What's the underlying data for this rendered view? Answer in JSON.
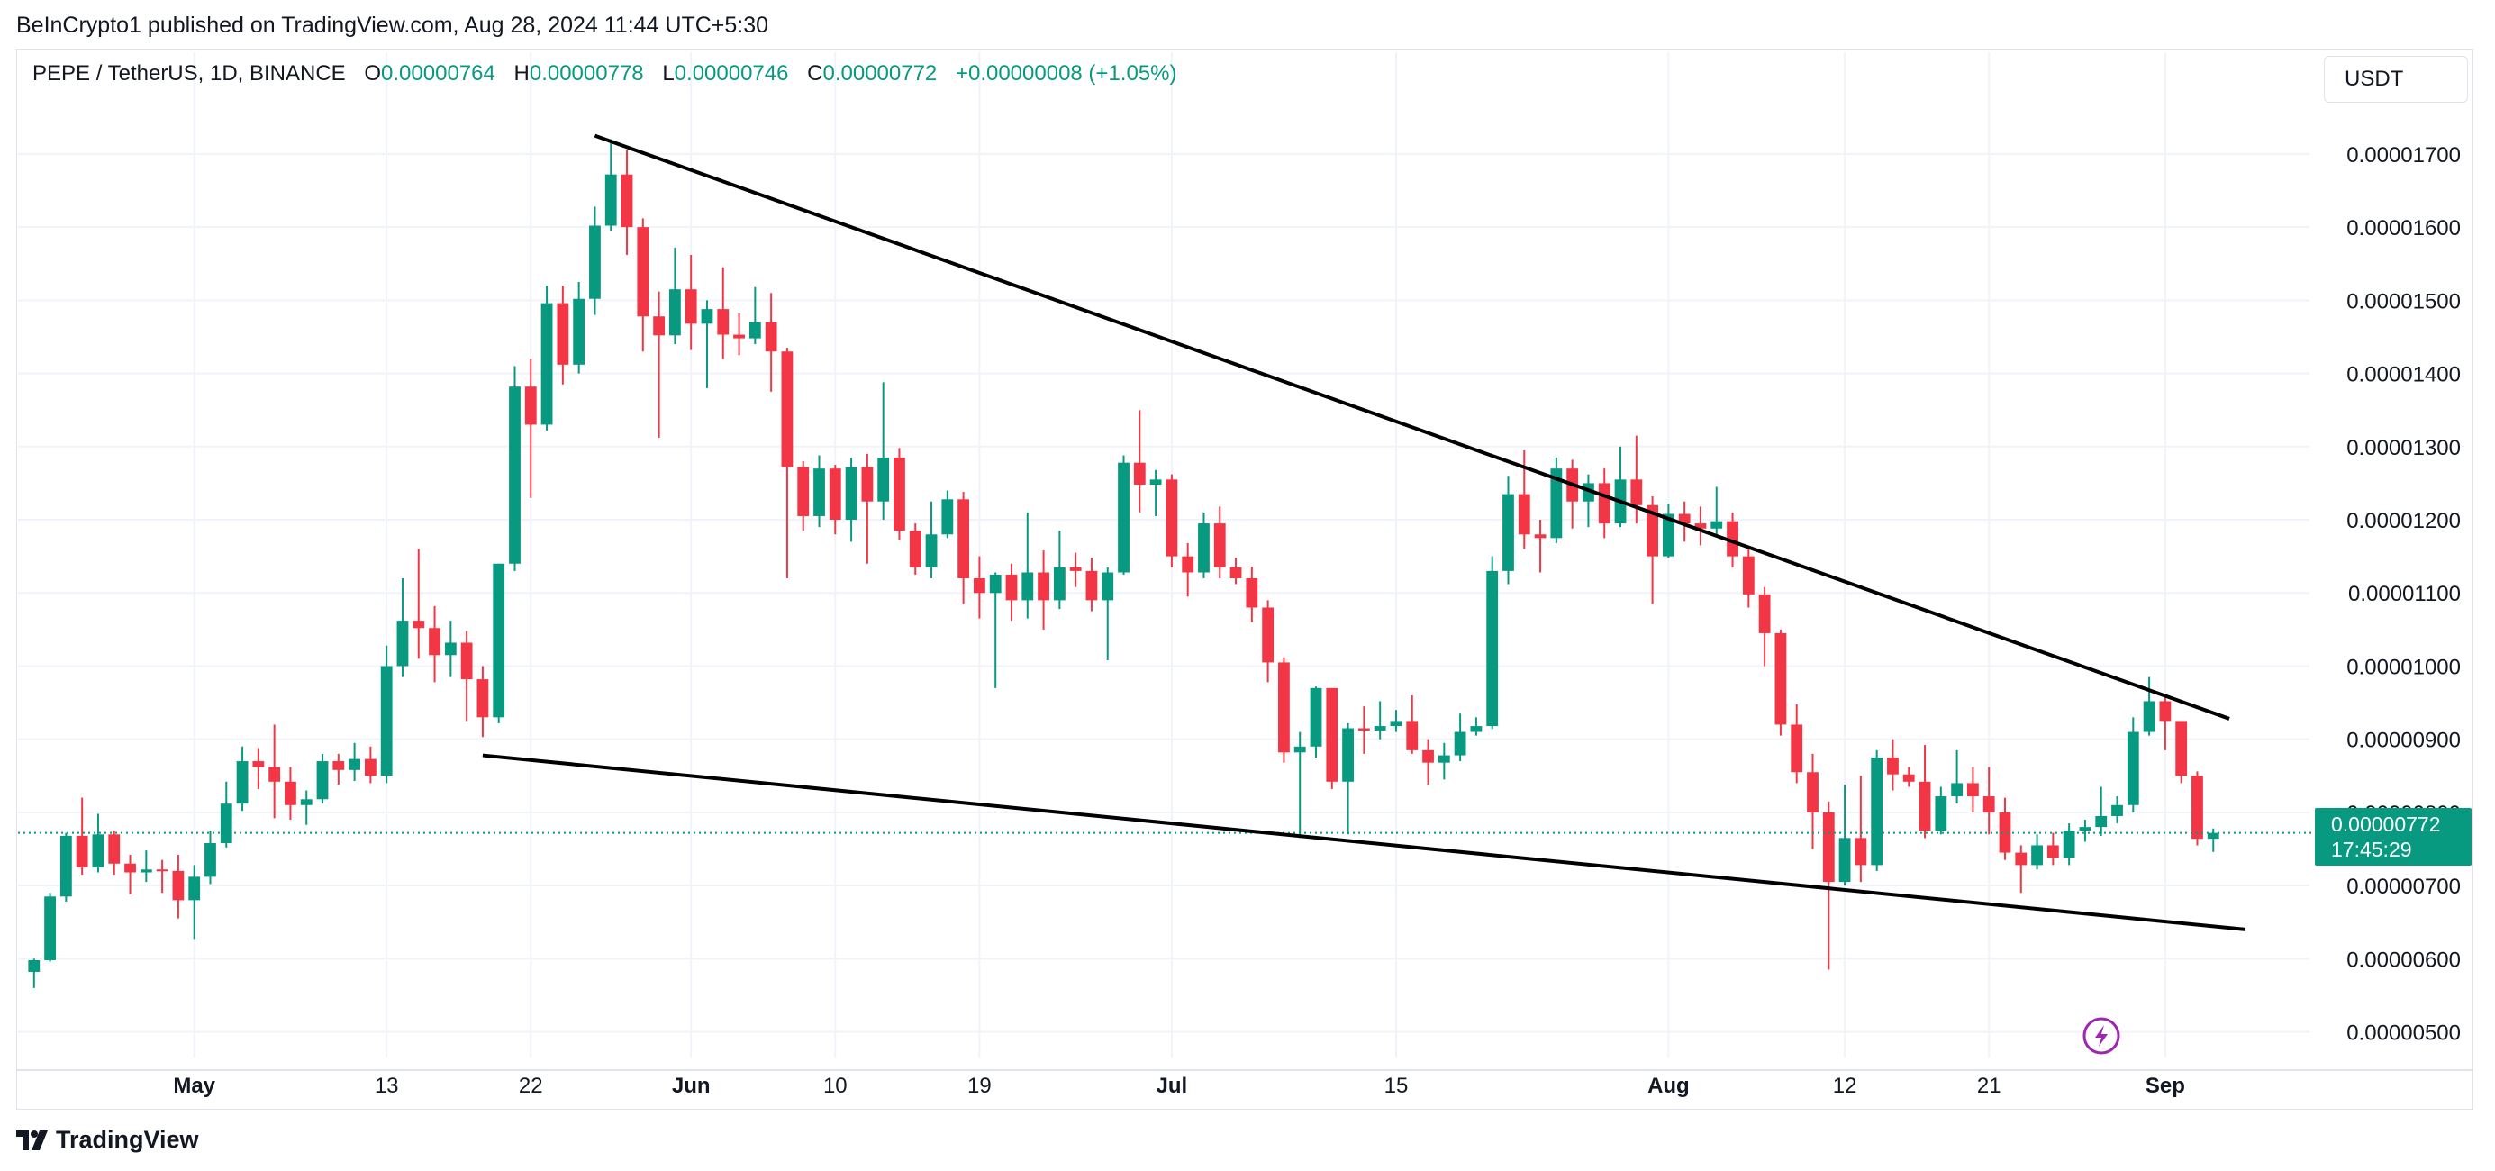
{
  "attribution": "BeInCrypto1 published on TradingView.com, Aug 28, 2024 11:44 UTC+5:30",
  "legend": {
    "symbol": "PEPE / TetherUS, 1D, BINANCE",
    "open_label": "O",
    "open": "0.00000764",
    "high_label": "H",
    "high": "0.00000778",
    "low_label": "L",
    "low": "0.00000746",
    "close_label": "C",
    "close": "0.00000772",
    "change": "+0.00000008 (+1.05%)"
  },
  "currency_button": "USDT",
  "price_tag": {
    "price": "0.00000772",
    "countdown": "17:45:29"
  },
  "footer": {
    "brand": "TradingView",
    "logo_icon": "tradingview-logo-icon"
  },
  "colors": {
    "up": "#089981",
    "down": "#f23645",
    "trendline": "#000000",
    "lightning": "#9c27b0"
  },
  "chart_data": {
    "type": "candlestick",
    "y_axis_labels": [
      "0.00001700",
      "0.00001600",
      "0.00001500",
      "0.00001400",
      "0.00001300",
      "0.00001200",
      "0.00001100",
      "0.00001000",
      "0.00000900",
      "0.00000800",
      "0.00000700",
      "0.00000600",
      "0.00000500"
    ],
    "y_tick_values": [
      1700,
      1600,
      1500,
      1400,
      1300,
      1200,
      1100,
      1000,
      900,
      800,
      700,
      600,
      500
    ],
    "y_unit_scale": "1e-8",
    "ylim": [
      465,
      1775
    ],
    "x_axis_labels": [
      "May",
      "13",
      "22",
      "Jun",
      "10",
      "19",
      "Jul",
      "15",
      "Aug",
      "12",
      "21",
      "Sep"
    ],
    "x_tick_dates": [
      "2024-05-01",
      "2024-05-13",
      "2024-05-22",
      "2024-06-01",
      "2024-06-10",
      "2024-06-19",
      "2024-07-01",
      "2024-07-15",
      "2024-08-01",
      "2024-08-12",
      "2024-08-21",
      "2024-09-01"
    ],
    "xlim": [
      "2024-04-20",
      "2024-09-10"
    ],
    "last_price": 772,
    "candles": [
      [
        "2024-04-21",
        582,
        598,
        560,
        600
      ],
      [
        "2024-04-22",
        598,
        685,
        596,
        690
      ],
      [
        "2024-04-23",
        685,
        768,
        678,
        772
      ],
      [
        "2024-04-24",
        768,
        725,
        715,
        820
      ],
      [
        "2024-04-25",
        725,
        770,
        718,
        798
      ],
      [
        "2024-04-26",
        770,
        730,
        715,
        775
      ],
      [
        "2024-04-27",
        730,
        718,
        688,
        742
      ],
      [
        "2024-04-28",
        718,
        722,
        705,
        748
      ],
      [
        "2024-04-29",
        722,
        720,
        690,
        735
      ],
      [
        "2024-04-30",
        720,
        680,
        655,
        742
      ],
      [
        "2024-05-01",
        680,
        712,
        627,
        728
      ],
      [
        "2024-05-02",
        712,
        758,
        702,
        775
      ],
      [
        "2024-05-03",
        758,
        812,
        752,
        842
      ],
      [
        "2024-05-04",
        812,
        870,
        802,
        890
      ],
      [
        "2024-05-05",
        870,
        862,
        832,
        888
      ],
      [
        "2024-05-06",
        862,
        842,
        792,
        920
      ],
      [
        "2024-05-07",
        842,
        810,
        790,
        862
      ],
      [
        "2024-05-08",
        810,
        818,
        783,
        830
      ],
      [
        "2024-05-09",
        818,
        870,
        812,
        880
      ],
      [
        "2024-05-10",
        870,
        858,
        838,
        880
      ],
      [
        "2024-05-11",
        858,
        873,
        843,
        895
      ],
      [
        "2024-05-12",
        873,
        850,
        840,
        890
      ],
      [
        "2024-05-13",
        850,
        1000,
        840,
        1028
      ],
      [
        "2024-05-14",
        1000,
        1062,
        985,
        1120
      ],
      [
        "2024-05-15",
        1062,
        1052,
        1010,
        1160
      ],
      [
        "2024-05-16",
        1052,
        1015,
        978,
        1082
      ],
      [
        "2024-05-17",
        1015,
        1032,
        985,
        1062
      ],
      [
        "2024-05-18",
        1032,
        982,
        925,
        1048
      ],
      [
        "2024-05-19",
        982,
        930,
        903,
        1000
      ],
      [
        "2024-05-20",
        930,
        1140,
        922,
        1140
      ],
      [
        "2024-05-21",
        1140,
        1382,
        1130,
        1410
      ],
      [
        "2024-05-22",
        1382,
        1330,
        1230,
        1420
      ],
      [
        "2024-05-23",
        1330,
        1496,
        1322,
        1520
      ],
      [
        "2024-05-24",
        1496,
        1412,
        1385,
        1520
      ],
      [
        "2024-05-25",
        1412,
        1502,
        1400,
        1525
      ],
      [
        "2024-05-26",
        1502,
        1602,
        1480,
        1628
      ],
      [
        "2024-05-27",
        1602,
        1672,
        1595,
        1720
      ],
      [
        "2024-05-28",
        1672,
        1600,
        1562,
        1705
      ],
      [
        "2024-05-29",
        1600,
        1478,
        1430,
        1612
      ],
      [
        "2024-05-30",
        1478,
        1452,
        1312,
        1512
      ],
      [
        "2024-05-31",
        1452,
        1515,
        1440,
        1572
      ],
      [
        "2024-06-01",
        1515,
        1468,
        1432,
        1562
      ],
      [
        "2024-06-02",
        1468,
        1488,
        1380,
        1500
      ],
      [
        "2024-06-03",
        1488,
        1453,
        1420,
        1545
      ],
      [
        "2024-06-04",
        1453,
        1448,
        1425,
        1482
      ],
      [
        "2024-06-05",
        1448,
        1470,
        1440,
        1518
      ],
      [
        "2024-06-06",
        1470,
        1430,
        1375,
        1510
      ],
      [
        "2024-06-07",
        1430,
        1272,
        1120,
        1435
      ],
      [
        "2024-06-08",
        1272,
        1205,
        1185,
        1280
      ],
      [
        "2024-06-09",
        1205,
        1270,
        1190,
        1288
      ],
      [
        "2024-06-10",
        1270,
        1200,
        1180,
        1275
      ],
      [
        "2024-06-11",
        1200,
        1272,
        1170,
        1285
      ],
      [
        "2024-06-12",
        1272,
        1225,
        1140,
        1290
      ],
      [
        "2024-06-13",
        1225,
        1285,
        1200,
        1388
      ],
      [
        "2024-06-14",
        1285,
        1185,
        1172,
        1298
      ],
      [
        "2024-06-15",
        1185,
        1135,
        1125,
        1195
      ],
      [
        "2024-06-16",
        1135,
        1180,
        1120,
        1225
      ],
      [
        "2024-06-17",
        1180,
        1228,
        1175,
        1240
      ],
      [
        "2024-06-18",
        1228,
        1120,
        1085,
        1238
      ],
      [
        "2024-06-19",
        1120,
        1100,
        1065,
        1150
      ],
      [
        "2024-06-20",
        1100,
        1125,
        970,
        1128
      ],
      [
        "2024-06-21",
        1125,
        1090,
        1062,
        1140
      ],
      [
        "2024-06-22",
        1090,
        1128,
        1065,
        1210
      ],
      [
        "2024-06-23",
        1128,
        1090,
        1050,
        1158
      ],
      [
        "2024-06-24",
        1090,
        1135,
        1078,
        1185
      ],
      [
        "2024-06-25",
        1135,
        1130,
        1108,
        1155
      ],
      [
        "2024-06-26",
        1130,
        1090,
        1075,
        1148
      ],
      [
        "2024-06-27",
        1090,
        1128,
        1008,
        1135
      ],
      [
        "2024-06-28",
        1128,
        1278,
        1125,
        1288
      ],
      [
        "2024-06-29",
        1278,
        1248,
        1210,
        1350
      ],
      [
        "2024-06-30",
        1248,
        1255,
        1205,
        1268
      ],
      [
        "2024-07-01",
        1255,
        1150,
        1135,
        1262
      ],
      [
        "2024-07-02",
        1150,
        1128,
        1095,
        1168
      ],
      [
        "2024-07-03",
        1128,
        1195,
        1120,
        1210
      ],
      [
        "2024-07-04",
        1195,
        1135,
        1120,
        1218
      ],
      [
        "2024-07-05",
        1135,
        1120,
        1112,
        1148
      ],
      [
        "2024-07-06",
        1120,
        1080,
        1060,
        1136
      ],
      [
        "2024-07-07",
        1080,
        1005,
        978,
        1090
      ],
      [
        "2024-07-08",
        1005,
        882,
        868,
        1012
      ],
      [
        "2024-07-09",
        882,
        890,
        765,
        910
      ],
      [
        "2024-07-10",
        890,
        970,
        875,
        972
      ],
      [
        "2024-07-11",
        970,
        842,
        832,
        968
      ],
      [
        "2024-07-12",
        842,
        915,
        770,
        922
      ],
      [
        "2024-07-13",
        915,
        912,
        880,
        945
      ],
      [
        "2024-07-14",
        912,
        918,
        900,
        952
      ],
      [
        "2024-07-15",
        918,
        925,
        910,
        940
      ],
      [
        "2024-07-16",
        925,
        885,
        880,
        960
      ],
      [
        "2024-07-17",
        885,
        868,
        838,
        900
      ],
      [
        "2024-07-18",
        868,
        878,
        845,
        895
      ],
      [
        "2024-07-19",
        878,
        910,
        870,
        935
      ],
      [
        "2024-07-20",
        910,
        918,
        905,
        930
      ],
      [
        "2024-07-21",
        918,
        1130,
        914,
        1150
      ],
      [
        "2024-07-22",
        1130,
        1235,
        1112,
        1260
      ],
      [
        "2024-07-23",
        1235,
        1180,
        1160,
        1295
      ],
      [
        "2024-07-24",
        1180,
        1175,
        1128,
        1200
      ],
      [
        "2024-07-25",
        1175,
        1270,
        1168,
        1285
      ],
      [
        "2024-07-26",
        1270,
        1225,
        1188,
        1282
      ],
      [
        "2024-07-27",
        1225,
        1250,
        1190,
        1262
      ],
      [
        "2024-07-28",
        1250,
        1195,
        1175,
        1270
      ],
      [
        "2024-07-29",
        1195,
        1255,
        1190,
        1300
      ],
      [
        "2024-07-30",
        1255,
        1220,
        1195,
        1315
      ],
      [
        "2024-07-31",
        1220,
        1150,
        1085,
        1232
      ],
      [
        "2024-08-01",
        1150,
        1208,
        1148,
        1222
      ],
      [
        "2024-08-02",
        1208,
        1195,
        1170,
        1225
      ],
      [
        "2024-08-03",
        1195,
        1188,
        1165,
        1218
      ],
      [
        "2024-08-04",
        1188,
        1198,
        1180,
        1245
      ],
      [
        "2024-08-05",
        1198,
        1150,
        1135,
        1210
      ],
      [
        "2024-08-06",
        1150,
        1098,
        1080,
        1162
      ],
      [
        "2024-08-07",
        1098,
        1045,
        1000,
        1108
      ],
      [
        "2024-08-08",
        1045,
        920,
        905,
        1050
      ],
      [
        "2024-08-09",
        920,
        855,
        840,
        948
      ],
      [
        "2024-08-10",
        855,
        800,
        750,
        880
      ],
      [
        "2024-08-11",
        800,
        705,
        585,
        815
      ],
      [
        "2024-08-12",
        705,
        765,
        700,
        838
      ],
      [
        "2024-08-13",
        765,
        728,
        705,
        850
      ],
      [
        "2024-08-14",
        728,
        875,
        720,
        885
      ],
      [
        "2024-08-15",
        875,
        852,
        830,
        900
      ],
      [
        "2024-08-16",
        852,
        842,
        835,
        862
      ],
      [
        "2024-08-17",
        842,
        775,
        765,
        892
      ],
      [
        "2024-08-18",
        775,
        822,
        770,
        835
      ],
      [
        "2024-08-19",
        822,
        840,
        812,
        885
      ],
      [
        "2024-08-20",
        840,
        822,
        800,
        862
      ],
      [
        "2024-08-21",
        822,
        800,
        770,
        862
      ],
      [
        "2024-08-22",
        800,
        745,
        735,
        820
      ],
      [
        "2024-08-23",
        745,
        728,
        690,
        755
      ],
      [
        "2024-08-24",
        728,
        755,
        722,
        770
      ],
      [
        "2024-08-25",
        755,
        738,
        728,
        772
      ],
      [
        "2024-08-26",
        738,
        775,
        728,
        785
      ],
      [
        "2024-08-27",
        775,
        780,
        760,
        790
      ],
      [
        "2024-08-28",
        780,
        795,
        768,
        835
      ],
      [
        "2024-08-29",
        795,
        810,
        785,
        822
      ],
      [
        "2024-08-30",
        810,
        910,
        800,
        930
      ],
      [
        "2024-08-31",
        910,
        952,
        905,
        985
      ],
      [
        "2024-09-01",
        952,
        925,
        885,
        960
      ],
      [
        "2024-09-02",
        925,
        850,
        840,
        922
      ],
      [
        "2024-09-03",
        850,
        764,
        755,
        856
      ],
      [
        "2024-09-04",
        764,
        772,
        746,
        778
      ]
    ],
    "trendlines": [
      {
        "name": "resistance",
        "points": [
          [
            "2024-05-26",
            1725
          ],
          [
            "2024-09-05",
            928
          ]
        ]
      },
      {
        "name": "support",
        "points": [
          [
            "2024-05-19",
            878
          ],
          [
            "2024-09-06",
            640
          ]
        ]
      }
    ]
  }
}
